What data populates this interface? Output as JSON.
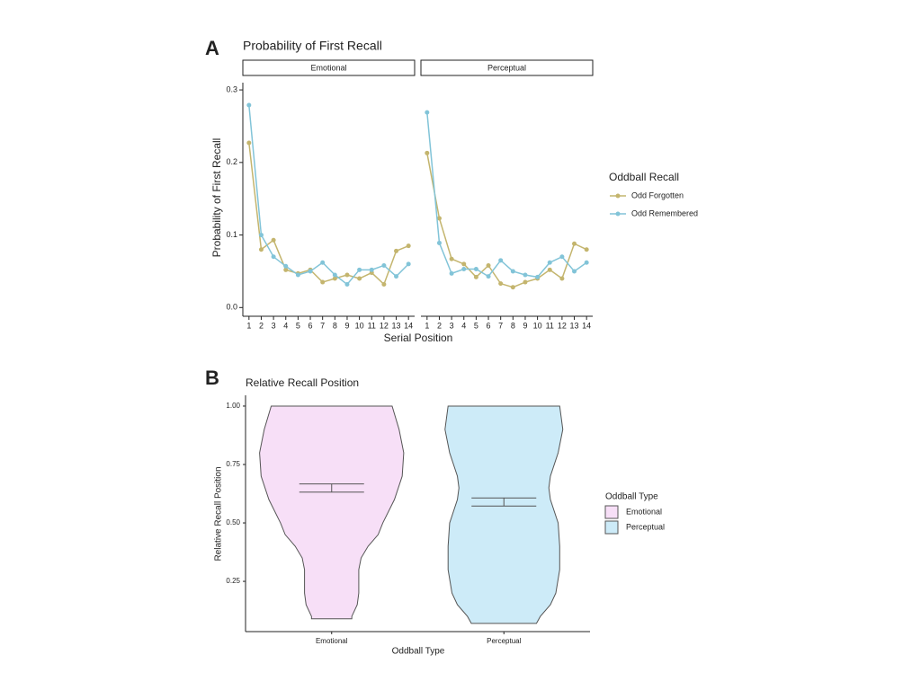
{
  "chart_data": [
    {
      "type": "line",
      "panel": "A",
      "title": "Probability of First Recall",
      "xlabel": "Serial Position",
      "ylabel": "Probability of First Recall",
      "x": [
        1,
        2,
        3,
        4,
        5,
        6,
        7,
        8,
        9,
        10,
        11,
        12,
        13,
        14
      ],
      "xlim": [
        0.5,
        14.5
      ],
      "ylim": [
        -0.012,
        0.31
      ],
      "yticks": [
        {
          "value": 0,
          "label": "0.0"
        },
        0.1,
        0.2,
        0.3
      ],
      "legend_title": "Oddball Recall",
      "legend": "right",
      "facets": [
        {
          "name": "Emotional",
          "series": [
            {
              "name": "Odd Forgotten",
              "color": "#c4b56e",
              "values": [
                0.227,
                0.08,
                0.093,
                0.052,
                0.047,
                0.052,
                0.035,
                0.04,
                0.045,
                0.04,
                0.048,
                0.032,
                0.078,
                0.085
              ]
            },
            {
              "name": "Odd Remembered",
              "color": "#82c4d8",
              "values": [
                0.279,
                0.1,
                0.07,
                0.057,
                0.045,
                0.05,
                0.062,
                0.045,
                0.032,
                0.052,
                0.052,
                0.058,
                0.043,
                0.06
              ]
            }
          ]
        },
        {
          "name": "Perceptual",
          "series": [
            {
              "name": "Odd Forgotten",
              "color": "#c4b56e",
              "values": [
                0.213,
                0.123,
                0.067,
                0.06,
                0.042,
                0.058,
                0.033,
                0.028,
                0.035,
                0.04,
                0.052,
                0.04,
                0.088,
                0.08
              ]
            },
            {
              "name": "Odd Remembered",
              "color": "#82c4d8",
              "values": [
                0.269,
                0.089,
                0.047,
                0.053,
                0.053,
                0.043,
                0.065,
                0.05,
                0.045,
                0.042,
                0.062,
                0.07,
                0.05,
                0.062
              ]
            }
          ]
        }
      ]
    },
    {
      "type": "violin",
      "panel": "B",
      "title": "Relative Recall Position",
      "xlabel": "Oddball Type",
      "ylabel": "Relative Recall Position",
      "categories": [
        "Emotional",
        "Perceptual"
      ],
      "ylim": [
        0.035,
        1.046
      ],
      "yticks": [
        {
          "value": 0.25,
          "label": "0.25"
        },
        {
          "value": 0.5,
          "label": "0.50"
        },
        {
          "value": 0.75,
          "label": "0.75"
        },
        {
          "value": 1,
          "label": "1.00"
        }
      ],
      "legend_title": "Oddball Type",
      "legend": "right",
      "groups": [
        {
          "color": "#f7dff7",
          "y": [
            0.09,
            0.1,
            0.15,
            0.2,
            0.3,
            0.35,
            0.4,
            0.45,
            0.5,
            0.6,
            0.7,
            0.8,
            0.9,
            1.0
          ],
          "width": [
            0.26,
            0.26,
            0.33,
            0.35,
            0.35,
            0.38,
            0.47,
            0.6,
            0.66,
            0.81,
            0.91,
            0.93,
            0.87,
            0.78
          ],
          "ci": [
            0.632,
            0.667
          ]
        },
        {
          "color": "#cdebf8",
          "y": [
            0.07,
            0.1,
            0.15,
            0.2,
            0.3,
            0.4,
            0.5,
            0.6,
            0.65,
            0.7,
            0.8,
            0.9,
            1.0
          ],
          "width": [
            0.42,
            0.47,
            0.6,
            0.67,
            0.72,
            0.72,
            0.7,
            0.6,
            0.58,
            0.6,
            0.7,
            0.76,
            0.72
          ],
          "ci": [
            0.572,
            0.607
          ]
        }
      ]
    }
  ]
}
